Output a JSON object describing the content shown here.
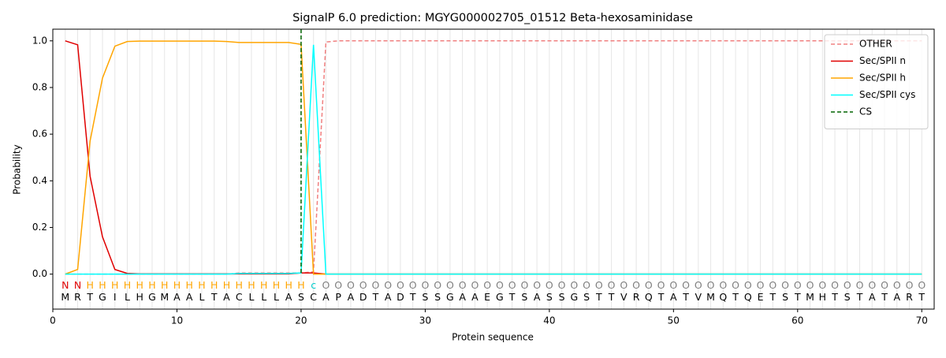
{
  "chart_data": {
    "type": "line",
    "title": "SignalP 6.0 prediction: MGYG000002705_01512 Beta-hexosaminidase",
    "xlabel": "Protein sequence",
    "ylabel": "Probability",
    "x": [
      1,
      2,
      3,
      4,
      5,
      6,
      7,
      8,
      9,
      10,
      11,
      12,
      13,
      14,
      15,
      16,
      17,
      18,
      19,
      20,
      21,
      22,
      23,
      24,
      25,
      26,
      27,
      28,
      29,
      30,
      31,
      32,
      33,
      34,
      35,
      36,
      37,
      38,
      39,
      40,
      41,
      42,
      43,
      44,
      45,
      46,
      47,
      48,
      49,
      50,
      51,
      52,
      53,
      54,
      55,
      56,
      57,
      58,
      59,
      60,
      61,
      62,
      63,
      64,
      65,
      66,
      67,
      68,
      69,
      70
    ],
    "series": [
      {
        "name": "OTHER",
        "color": "#f08080",
        "dashed": true,
        "values": [
          0,
          0,
          0,
          0,
          0,
          0,
          0,
          0,
          0,
          0,
          0,
          0,
          0,
          0,
          0.005,
          0.005,
          0.005,
          0.005,
          0.005,
          0.005,
          0.01,
          0.995,
          1,
          1,
          1,
          1,
          1,
          1,
          1,
          1,
          1,
          1,
          1,
          1,
          1,
          1,
          1,
          1,
          1,
          1,
          1,
          1,
          1,
          1,
          1,
          1,
          1,
          1,
          1,
          1,
          1,
          1,
          1,
          1,
          1,
          1,
          1,
          1,
          1,
          1,
          1,
          1,
          1,
          1,
          1,
          1,
          1,
          1,
          1,
          1
        ]
      },
      {
        "name": "Sec/SPII n",
        "color": "#e00000",
        "dashed": false,
        "values": [
          1,
          0.983,
          0.42,
          0.16,
          0.02,
          0.003,
          0.001,
          0.001,
          0.001,
          0.001,
          0.001,
          0.001,
          0.001,
          0.001,
          0.001,
          0.001,
          0.001,
          0.001,
          0.001,
          0.005,
          0.005,
          0,
          0,
          0,
          0,
          0,
          0,
          0,
          0,
          0,
          0,
          0,
          0,
          0,
          0,
          0,
          0,
          0,
          0,
          0,
          0,
          0,
          0,
          0,
          0,
          0,
          0,
          0,
          0,
          0,
          0,
          0,
          0,
          0,
          0,
          0,
          0,
          0,
          0,
          0,
          0,
          0,
          0,
          0,
          0,
          0,
          0,
          0,
          0,
          0
        ]
      },
      {
        "name": "Sec/SPII h",
        "color": "#ffa500",
        "dashed": false,
        "values": [
          0,
          0.02,
          0.57,
          0.84,
          0.977,
          0.997,
          0.999,
          0.999,
          0.999,
          0.999,
          0.999,
          0.999,
          0.999,
          0.997,
          0.993,
          0.993,
          0.993,
          0.993,
          0.993,
          0.985,
          0,
          0,
          0,
          0,
          0,
          0,
          0,
          0,
          0,
          0,
          0,
          0,
          0,
          0,
          0,
          0,
          0,
          0,
          0,
          0,
          0,
          0,
          0,
          0,
          0,
          0,
          0,
          0,
          0,
          0,
          0,
          0,
          0,
          0,
          0,
          0,
          0,
          0,
          0,
          0,
          0,
          0,
          0,
          0,
          0,
          0,
          0,
          0,
          0,
          0
        ]
      },
      {
        "name": "Sec/SPII cys",
        "color": "#00ffff",
        "dashed": false,
        "values": [
          0,
          0,
          0,
          0,
          0,
          0,
          0,
          0,
          0,
          0,
          0,
          0,
          0,
          0,
          0.003,
          0.003,
          0.003,
          0.003,
          0.003,
          0.005,
          0.983,
          0,
          0,
          0,
          0,
          0,
          0,
          0,
          0,
          0,
          0,
          0,
          0,
          0,
          0,
          0,
          0,
          0,
          0,
          0,
          0,
          0,
          0,
          0,
          0,
          0,
          0,
          0,
          0,
          0,
          0,
          0,
          0,
          0,
          0,
          0,
          0,
          0,
          0,
          0,
          0,
          0,
          0,
          0,
          0,
          0,
          0,
          0,
          0,
          0
        ]
      }
    ],
    "cs_line": {
      "name": "CS",
      "color": "#006400",
      "x": 20
    },
    "sequence": [
      "M",
      "R",
      "T",
      "G",
      "I",
      "L",
      "H",
      "G",
      "M",
      "A",
      "A",
      "L",
      "T",
      "A",
      "C",
      "L",
      "L",
      "L",
      "A",
      "S",
      "C",
      "A",
      "P",
      "A",
      "D",
      "T",
      "A",
      "D",
      "T",
      "S",
      "S",
      "G",
      "A",
      "A",
      "E",
      "G",
      "T",
      "S",
      "A",
      "S",
      "S",
      "G",
      "S",
      "T",
      "T",
      "V",
      "R",
      "Q",
      "T",
      "A",
      "T",
      "V",
      "M",
      "Q",
      "T",
      "Q",
      "E",
      "T",
      "S",
      "T",
      "M",
      "H",
      "T",
      "S",
      "T",
      "A",
      "T",
      "A",
      "R",
      "T"
    ],
    "labels": [
      "N",
      "N",
      "H",
      "H",
      "H",
      "H",
      "H",
      "H",
      "H",
      "H",
      "H",
      "H",
      "H",
      "H",
      "H",
      "H",
      "H",
      "H",
      "H",
      "H",
      "c",
      "O",
      "O",
      "O",
      "O",
      "O",
      "O",
      "O",
      "O",
      "O",
      "O",
      "O",
      "O",
      "O",
      "O",
      "O",
      "O",
      "O",
      "O",
      "O",
      "O",
      "O",
      "O",
      "O",
      "O",
      "O",
      "O",
      "O",
      "O",
      "O",
      "O",
      "O",
      "O",
      "O",
      "O",
      "O",
      "O",
      "O",
      "O",
      "O",
      "O",
      "O",
      "O",
      "O",
      "O",
      "O",
      "O",
      "O",
      "O",
      "O"
    ],
    "label_colors": {
      "N": "#e00000",
      "H": "#ffa500",
      "c": "#00cccc",
      "O": "#808080"
    },
    "xlim": [
      0,
      71
    ],
    "ylim": [
      -0.15,
      1.05
    ],
    "xticks": [
      0,
      10,
      20,
      30,
      40,
      50,
      60,
      70
    ],
    "yticks": [
      {
        "value": 0,
        "label": "0.0"
      },
      {
        "value": 0.2,
        "label": "0.2"
      },
      {
        "value": 0.4,
        "label": "0.4"
      },
      {
        "value": 0.6,
        "label": "0.6"
      },
      {
        "value": 0.8,
        "label": "0.8"
      },
      {
        "value": 1,
        "label": "1.0"
      }
    ],
    "vgrid": true,
    "legend": "upper right"
  }
}
